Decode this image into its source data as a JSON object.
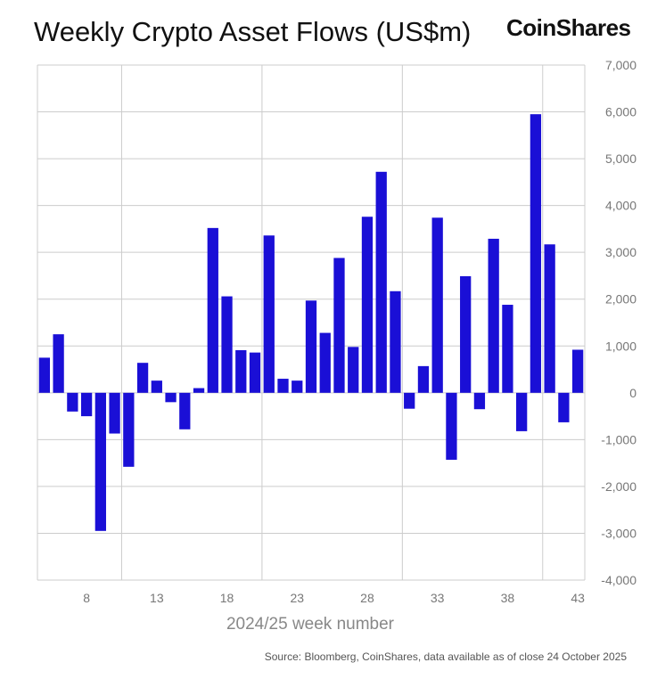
{
  "header": {
    "title": "Weekly Crypto Asset Flows (US$m)",
    "brand": "CoinShares"
  },
  "footer": {
    "source": "Source: Bloomberg, CoinShares, data available as of close 24 October 2025"
  },
  "chart_data": {
    "type": "bar",
    "title": "Weekly Crypto Asset Flows (US$m)",
    "xlabel": "2024/25 week number",
    "ylabel": "",
    "x": [
      5,
      6,
      7,
      8,
      9,
      10,
      11,
      12,
      13,
      14,
      15,
      16,
      17,
      18,
      19,
      20,
      21,
      22,
      23,
      24,
      25,
      26,
      27,
      28,
      29,
      30,
      31,
      32,
      33,
      34,
      35,
      36,
      37,
      38,
      39,
      40,
      41,
      42,
      43
    ],
    "values": [
      750,
      1250,
      -400,
      -500,
      -2950,
      -870,
      -1580,
      640,
      260,
      -200,
      -780,
      100,
      3520,
      2060,
      910,
      860,
      3360,
      300,
      260,
      1970,
      1280,
      2880,
      980,
      3760,
      4720,
      2170,
      -340,
      570,
      3740,
      -1430,
      2490,
      -350,
      3290,
      1880,
      -820,
      5950,
      3170,
      -630,
      920
    ],
    "x_ticks": [
      8,
      13,
      18,
      23,
      28,
      33,
      38,
      43
    ],
    "ylim": [
      -4000,
      7000
    ],
    "y_ticks": [
      "-4,000",
      "-3,000",
      "-2,000",
      "-1,000",
      "0",
      "1,000",
      "2,000",
      "3,000",
      "4,000",
      "5,000",
      "6,000",
      "7,000"
    ],
    "y_tick_values": [
      -4000,
      -3000,
      -2000,
      -1000,
      0,
      1000,
      2000,
      3000,
      4000,
      5000,
      6000,
      7000
    ],
    "grid": true,
    "bar_color": "#1a0fd6",
    "grid_color": "#cccccc"
  }
}
